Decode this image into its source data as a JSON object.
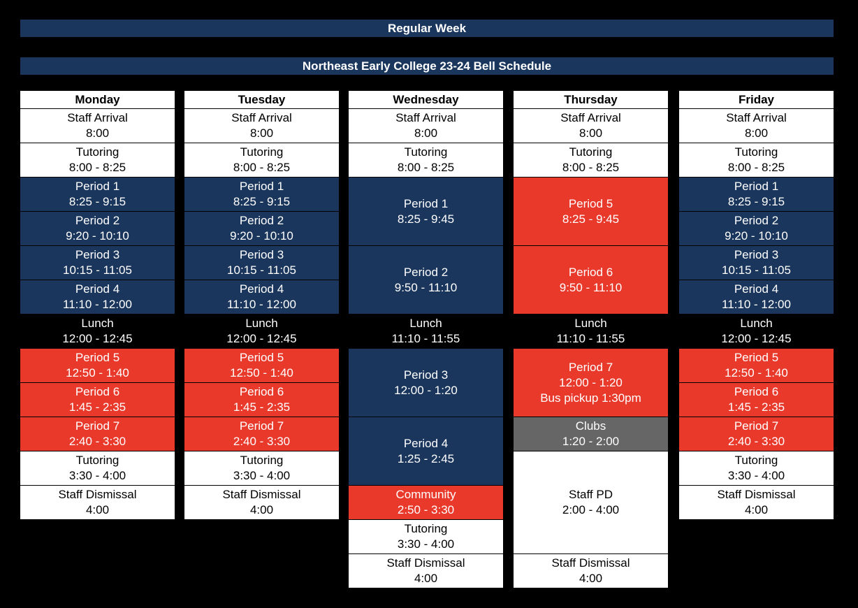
{
  "banners": {
    "week": "Regular Week",
    "title": "Northeast Early College 23-24 Bell Schedule"
  },
  "colors": {
    "navy": "#1a365d",
    "red": "#e8392b",
    "gray": "#666666",
    "white": "#ffffff",
    "black": "#000000"
  },
  "days": [
    {
      "name": "Monday",
      "blocks": [
        {
          "lines": [
            "Staff Arrival",
            "8:00"
          ],
          "color": "white",
          "units": 1
        },
        {
          "lines": [
            "Tutoring",
            "8:00 - 8:25"
          ],
          "color": "white",
          "units": 1
        },
        {
          "lines": [
            "Period 1",
            "8:25 - 9:15"
          ],
          "color": "navy",
          "units": 1
        },
        {
          "lines": [
            "Period 2",
            "9:20 - 10:10"
          ],
          "color": "navy",
          "units": 1
        },
        {
          "lines": [
            "Period 3",
            "10:15 - 11:05"
          ],
          "color": "navy",
          "units": 1
        },
        {
          "lines": [
            "Period 4",
            "11:10 - 12:00"
          ],
          "color": "navy",
          "units": 1
        },
        {
          "lines": [
            "Lunch",
            "12:00 - 12:45"
          ],
          "color": "black",
          "units": 1
        },
        {
          "lines": [
            "Period 5",
            "12:50 - 1:40"
          ],
          "color": "red",
          "units": 1
        },
        {
          "lines": [
            "Period 6",
            "1:45 - 2:35"
          ],
          "color": "red",
          "units": 1
        },
        {
          "lines": [
            "Period 7",
            "2:40 - 3:30"
          ],
          "color": "red",
          "units": 1
        },
        {
          "lines": [
            "Tutoring",
            "3:30 - 4:00"
          ],
          "color": "white",
          "units": 1
        },
        {
          "lines": [
            "Staff Dismissal",
            "4:00"
          ],
          "color": "white",
          "units": 1
        }
      ]
    },
    {
      "name": "Tuesday",
      "blocks": [
        {
          "lines": [
            "Staff Arrival",
            "8:00"
          ],
          "color": "white",
          "units": 1
        },
        {
          "lines": [
            "Tutoring",
            "8:00 - 8:25"
          ],
          "color": "white",
          "units": 1
        },
        {
          "lines": [
            "Period 1",
            "8:25 - 9:15"
          ],
          "color": "navy",
          "units": 1
        },
        {
          "lines": [
            "Period 2",
            "9:20 - 10:10"
          ],
          "color": "navy",
          "units": 1
        },
        {
          "lines": [
            "Period 3",
            "10:15 - 11:05"
          ],
          "color": "navy",
          "units": 1
        },
        {
          "lines": [
            "Period 4",
            "11:10 - 12:00"
          ],
          "color": "navy",
          "units": 1
        },
        {
          "lines": [
            "Lunch",
            "12:00 - 12:45"
          ],
          "color": "black",
          "units": 1
        },
        {
          "lines": [
            "Period 5",
            "12:50 - 1:40"
          ],
          "color": "red",
          "units": 1
        },
        {
          "lines": [
            "Period 6",
            "1:45 - 2:35"
          ],
          "color": "red",
          "units": 1
        },
        {
          "lines": [
            "Period 7",
            "2:40 - 3:30"
          ],
          "color": "red",
          "units": 1
        },
        {
          "lines": [
            "Tutoring",
            "3:30 - 4:00"
          ],
          "color": "white",
          "units": 1
        },
        {
          "lines": [
            "Staff Dismissal",
            "4:00"
          ],
          "color": "white",
          "units": 1
        }
      ]
    },
    {
      "name": "Wednesday",
      "blocks": [
        {
          "lines": [
            "Staff Arrival",
            "8:00"
          ],
          "color": "white",
          "units": 1
        },
        {
          "lines": [
            "Tutoring",
            "8:00 - 8:25"
          ],
          "color": "white",
          "units": 1
        },
        {
          "lines": [
            "Period 1",
            "8:25 - 9:45"
          ],
          "color": "navy",
          "units": 2
        },
        {
          "lines": [
            "Period 2",
            "9:50 - 11:10"
          ],
          "color": "navy",
          "units": 2
        },
        {
          "lines": [
            "Lunch",
            "11:10 - 11:55"
          ],
          "color": "black",
          "units": 1
        },
        {
          "lines": [
            "Period 3",
            "12:00 - 1:20"
          ],
          "color": "navy",
          "units": 2
        },
        {
          "lines": [
            "Period 4",
            "1:25 - 2:45"
          ],
          "color": "navy",
          "units": 2
        },
        {
          "lines": [
            "Community",
            "2:50 - 3:30"
          ],
          "color": "red",
          "units": 1
        },
        {
          "lines": [
            "Tutoring",
            "3:30 - 4:00"
          ],
          "color": "white",
          "units": 1
        },
        {
          "lines": [
            "Staff Dismissal",
            "4:00"
          ],
          "color": "white",
          "units": 1
        }
      ]
    },
    {
      "name": "Thursday",
      "blocks": [
        {
          "lines": [
            "Staff Arrival",
            "8:00"
          ],
          "color": "white",
          "units": 1
        },
        {
          "lines": [
            "Tutoring",
            "8:00 - 8:25"
          ],
          "color": "white",
          "units": 1
        },
        {
          "lines": [
            "Period 5",
            "8:25 - 9:45"
          ],
          "color": "red",
          "units": 2
        },
        {
          "lines": [
            "Period 6",
            "9:50 - 11:10"
          ],
          "color": "red",
          "units": 2
        },
        {
          "lines": [
            "Lunch",
            "11:10 - 11:55"
          ],
          "color": "black",
          "units": 1
        },
        {
          "lines": [
            "Period 7",
            "12:00 - 1:20",
            "Bus pickup 1:30pm"
          ],
          "color": "red",
          "units": 2
        },
        {
          "lines": [
            "Clubs",
            "1:20 - 2:00"
          ],
          "color": "gray",
          "units": 1
        },
        {
          "lines": [
            "Staff PD",
            "2:00 - 4:00"
          ],
          "color": "white",
          "units": 3
        },
        {
          "lines": [
            "Staff Dismissal",
            "4:00"
          ],
          "color": "white",
          "units": 1
        }
      ]
    },
    {
      "name": "Friday",
      "blocks": [
        {
          "lines": [
            "Staff Arrival",
            "8:00"
          ],
          "color": "white",
          "units": 1
        },
        {
          "lines": [
            "Tutoring",
            "8:00 - 8:25"
          ],
          "color": "white",
          "units": 1
        },
        {
          "lines": [
            "Period 1",
            "8:25 - 9:15"
          ],
          "color": "navy",
          "units": 1
        },
        {
          "lines": [
            "Period 2",
            "9:20 - 10:10"
          ],
          "color": "navy",
          "units": 1
        },
        {
          "lines": [
            "Period 3",
            "10:15 - 11:05"
          ],
          "color": "navy",
          "units": 1
        },
        {
          "lines": [
            "Period 4",
            "11:10 - 12:00"
          ],
          "color": "navy",
          "units": 1
        },
        {
          "lines": [
            "Lunch",
            "12:00 - 12:45"
          ],
          "color": "black",
          "units": 1
        },
        {
          "lines": [
            "Period 5",
            "12:50 - 1:40"
          ],
          "color": "red",
          "units": 1
        },
        {
          "lines": [
            "Period 6",
            "1:45 - 2:35"
          ],
          "color": "red",
          "units": 1
        },
        {
          "lines": [
            "Period 7",
            "2:40 - 3:30"
          ],
          "color": "red",
          "units": 1
        },
        {
          "lines": [
            "Tutoring",
            "3:30 - 4:00"
          ],
          "color": "white",
          "units": 1
        },
        {
          "lines": [
            "Staff Dismissal",
            "4:00"
          ],
          "color": "white",
          "units": 1
        }
      ]
    }
  ]
}
